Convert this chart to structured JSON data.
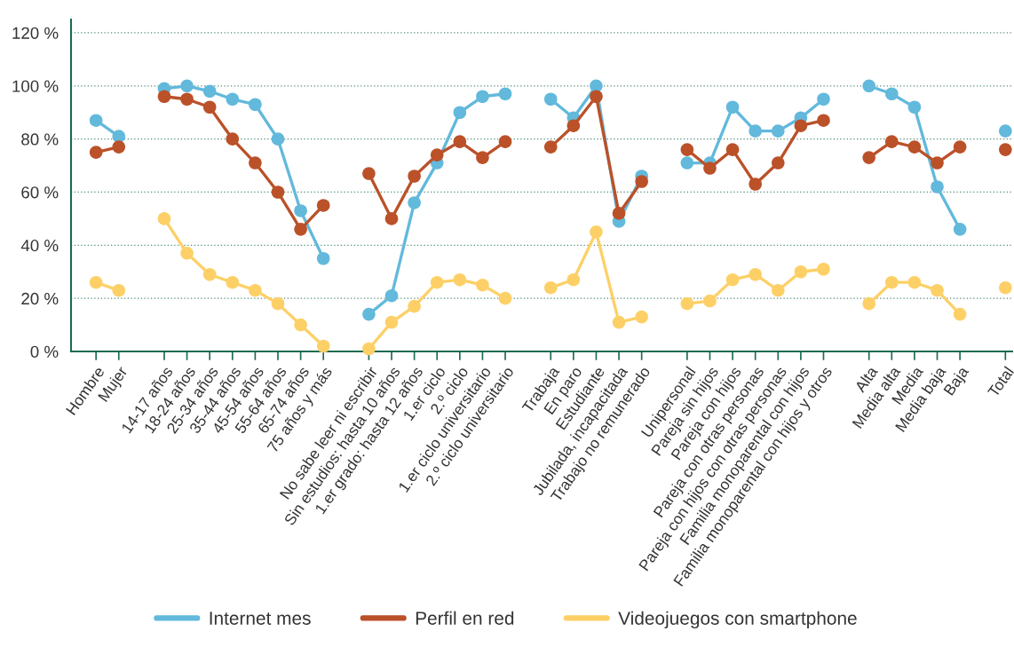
{
  "chart_data": {
    "type": "line",
    "categories": [
      "Hombre",
      "Mujer",
      null,
      "14-17 años",
      "18-24 años",
      "25-34 años",
      "35-44 años",
      "45-54 años",
      "55-64 años",
      "65-74 años",
      "75 años y más",
      null,
      "No sabe leer ni escribir",
      "Sin estudios: hasta 10 años",
      "1.er grado: hasta 12 años",
      "1.er ciclo",
      "2.º ciclo",
      "1.er ciclo universitario",
      "2.º ciclo universitario",
      null,
      "Trabaja",
      "En paro",
      "Estudiante",
      "Jubilada, incapacitada",
      "Trabajo no remunerado",
      null,
      "Unipersonal",
      "Pareja sin hijos",
      "Pareja con hijos",
      "Pareja con otras personas",
      "Pareja con hijos con otras personas",
      "Familia monoparental con hijos",
      "Familia monoparental con hijos y otros",
      null,
      "Alta",
      "Media alta",
      "Media",
      "Media baja",
      "Baja",
      null,
      "Total"
    ],
    "series": [
      {
        "name": "Internet mes",
        "color": "#62b9dc",
        "values": [
          87,
          81,
          null,
          99,
          100,
          98,
          95,
          93,
          80,
          53,
          35,
          null,
          14,
          21,
          56,
          71,
          90,
          96,
          97,
          null,
          95,
          88,
          100,
          49,
          66,
          null,
          71,
          71,
          92,
          83,
          83,
          88,
          95,
          null,
          100,
          97,
          92,
          62,
          46,
          null,
          83
        ]
      },
      {
        "name": "Perfil en red",
        "color": "#bb5129",
        "values": [
          75,
          77,
          null,
          96,
          95,
          92,
          80,
          71,
          60,
          46,
          55,
          null,
          67,
          50,
          66,
          74,
          79,
          73,
          79,
          null,
          77,
          85,
          96,
          52,
          64,
          null,
          76,
          69,
          76,
          63,
          71,
          85,
          87,
          null,
          73,
          79,
          77,
          71,
          77,
          null,
          76
        ]
      },
      {
        "name": "Videojuegos con smartphone",
        "color": "#fdd067",
        "values": [
          26,
          23,
          null,
          50,
          37,
          29,
          26,
          23,
          18,
          10,
          2,
          null,
          1,
          11,
          17,
          26,
          27,
          25,
          20,
          null,
          24,
          27,
          45,
          11,
          13,
          null,
          18,
          19,
          27,
          29,
          23,
          30,
          31,
          null,
          18,
          26,
          26,
          23,
          14,
          null,
          24
        ]
      }
    ],
    "ylim": [
      0,
      125
    ],
    "yticks": [
      {
        "value": 0,
        "label": "0 %"
      },
      {
        "value": 20,
        "label": "20 %"
      },
      {
        "value": 40,
        "label": "40 %"
      },
      {
        "value": 60,
        "label": "60 %"
      },
      {
        "value": 80,
        "label": "80 %"
      },
      {
        "value": 100,
        "label": "100 %"
      },
      {
        "value": 120,
        "label": "120 %"
      }
    ],
    "grid": "y",
    "legend": "bottom",
    "marker": "circle",
    "line_style": "solid"
  }
}
